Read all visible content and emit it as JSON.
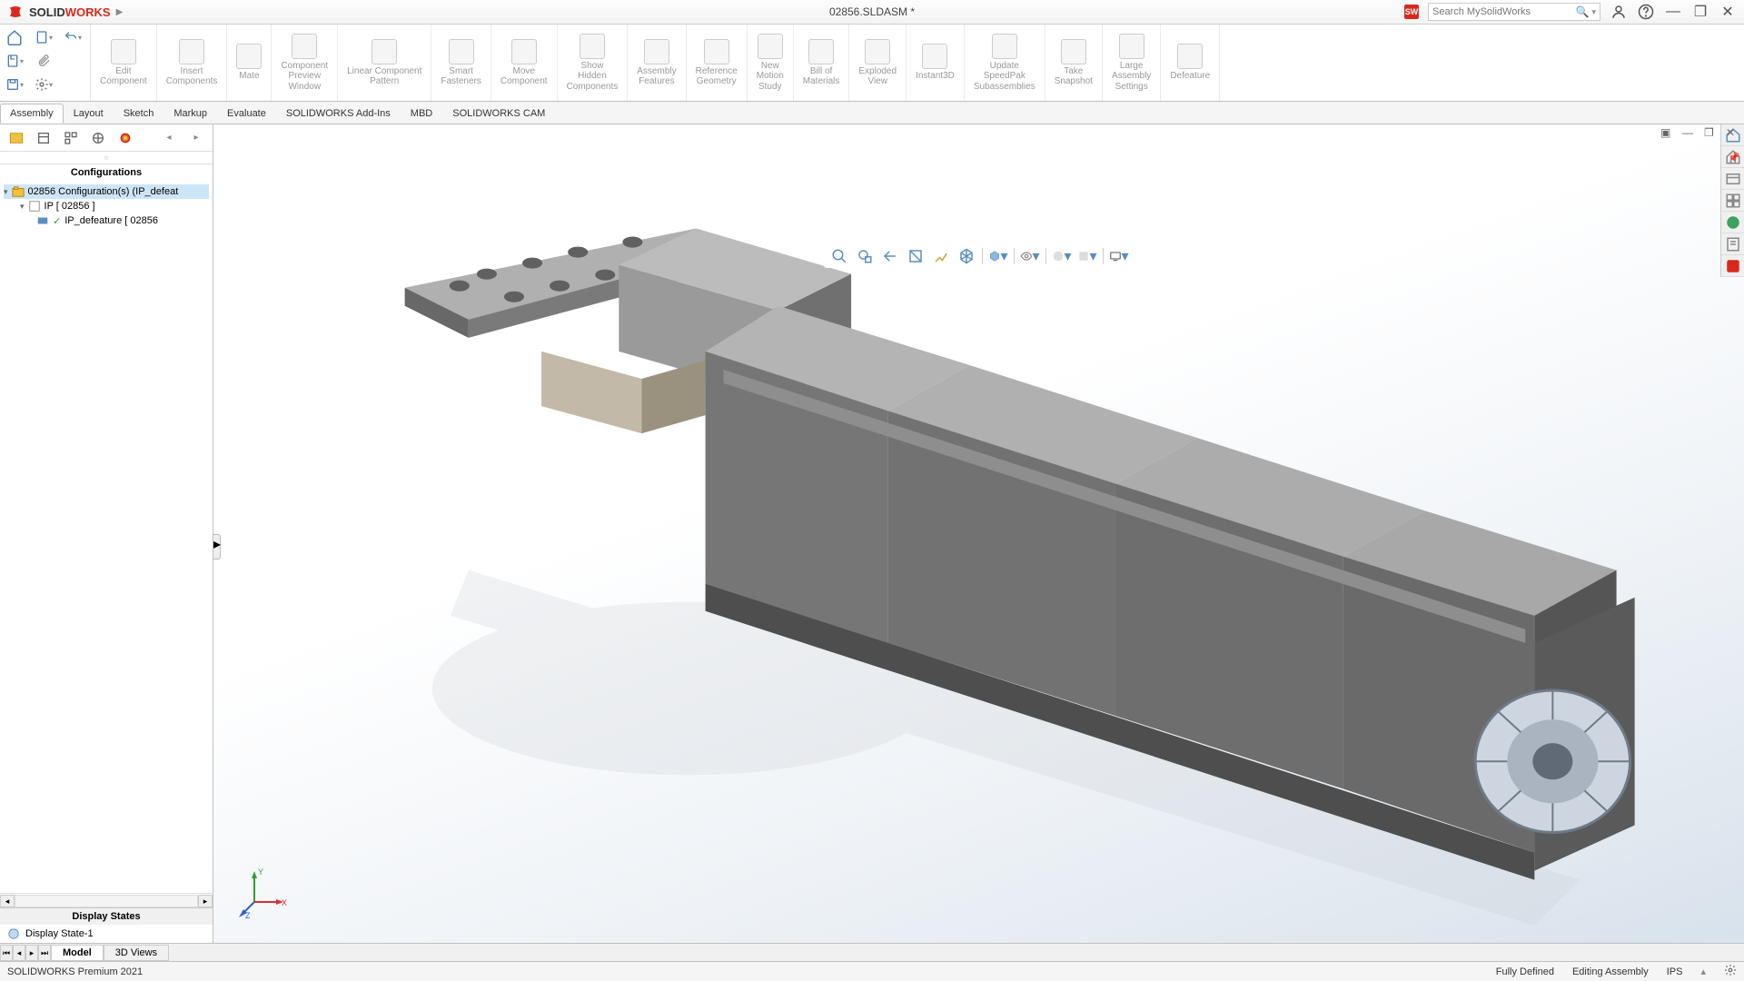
{
  "app": {
    "name_black": "SOLID",
    "name_red": "WORKS",
    "doc_title": "02856.SLDASM *"
  },
  "search": {
    "placeholder": "Search MySolidWorks"
  },
  "ribbon": [
    {
      "label": "Edit\nComponent"
    },
    {
      "label": "Insert\nComponents"
    },
    {
      "label": "Mate"
    },
    {
      "label": "Component\nPreview\nWindow"
    },
    {
      "label": "Linear Component\nPattern"
    },
    {
      "label": "Smart\nFasteners"
    },
    {
      "label": "Move\nComponent"
    },
    {
      "label": "Show\nHidden\nComponents"
    },
    {
      "label": "Assembly\nFeatures"
    },
    {
      "label": "Reference\nGeometry"
    },
    {
      "label": "New\nMotion\nStudy"
    },
    {
      "label": "Bill of\nMaterials"
    },
    {
      "label": "Exploded\nView"
    },
    {
      "label": "Instant3D"
    },
    {
      "label": "Update\nSpeedPak\nSubassemblies"
    },
    {
      "label": "Take\nSnapshot"
    },
    {
      "label": "Large\nAssembly\nSettings"
    },
    {
      "label": "Defeature"
    }
  ],
  "tabs": [
    "Assembly",
    "Layout",
    "Sketch",
    "Markup",
    "Evaluate",
    "SOLIDWORKS Add-Ins",
    "MBD",
    "SOLIDWORKS CAM"
  ],
  "active_tab": "Assembly",
  "config": {
    "header": "Configurations",
    "root": "02856 Configuration(s)  (IP_defeat",
    "child1": "IP [ 02856 ]",
    "child2": "IP_defeature [ 02856"
  },
  "display_states": {
    "header": "Display States",
    "item": "Display State-1"
  },
  "bottom_tabs": {
    "model": "Model",
    "views": "3D Views",
    "active": "Model"
  },
  "status": {
    "left": "SOLIDWORKS Premium 2021",
    "defined": "Fully Defined",
    "mode": "Editing Assembly",
    "units": "IPS"
  },
  "colors": {
    "accent": "#da291c",
    "axis_x": "#d93030",
    "axis_y": "#30a030",
    "axis_z": "#3060d0",
    "model_light": "#b8b8b8",
    "model_mid": "#8a8a8a",
    "model_dark": "#5e5e5e",
    "model_top": "#a6a6a6",
    "shadow": "#d8dde2"
  }
}
